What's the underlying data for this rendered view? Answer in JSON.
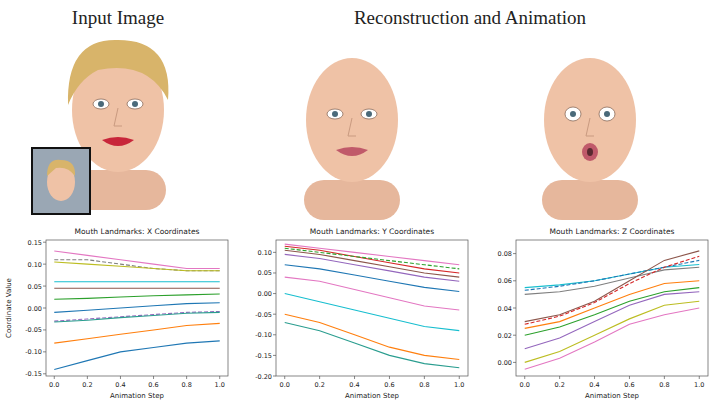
{
  "headings": {
    "left": "Input Image",
    "right": "Reconstruction and Animation"
  },
  "chart_data": [
    {
      "type": "line",
      "title": "Mouth Landmarks: X Coordinates",
      "x_label": "Animation Step",
      "y_label": "Coordinate Value",
      "x": [
        0.0,
        0.2,
        0.4,
        0.6,
        0.8,
        1.0
      ],
      "xlim": [
        -0.05,
        1.05
      ],
      "xticks": [
        {
          "value": 0,
          "label": "0.0"
        },
        {
          "value": 0.2,
          "label": "0.2"
        },
        {
          "value": 0.4,
          "label": "0.4"
        },
        {
          "value": 0.6,
          "label": "0.6"
        },
        {
          "value": 0.8,
          "label": "0.8"
        },
        {
          "value": 1,
          "label": "1.0"
        }
      ],
      "ylim": [
        -0.155,
        0.155
      ],
      "yticks": [
        {
          "value": -0.15,
          "label": "-0.15"
        },
        {
          "value": -0.1,
          "label": "-0.10"
        },
        {
          "value": -0.05,
          "label": "-0.05"
        },
        {
          "value": 0,
          "label": "0.00"
        },
        {
          "value": 0.05,
          "label": "0.05"
        },
        {
          "value": 0.1,
          "label": "0.10"
        },
        {
          "value": 0.15,
          "label": "0.15"
        }
      ],
      "grid": false,
      "series": [
        {
          "color": "#e377c2",
          "line_style": "solid",
          "values": [
            0.13,
            0.12,
            0.11,
            0.1,
            0.09,
            0.09
          ]
        },
        {
          "color": "#7f7f7f",
          "line_style": "dashed",
          "values": [
            0.11,
            0.11,
            0.1,
            0.09,
            0.085,
            0.085
          ]
        },
        {
          "color": "#bcbd22",
          "line_style": "solid",
          "values": [
            0.105,
            0.1,
            0.095,
            0.09,
            0.085,
            0.085
          ]
        },
        {
          "color": "#17becf",
          "line_style": "solid",
          "values": [
            0.06,
            0.06,
            0.06,
            0.06,
            0.06,
            0.06
          ]
        },
        {
          "color": "#8c564b",
          "line_style": "solid",
          "values": [
            0.045,
            0.045,
            0.045,
            0.045,
            0.045,
            0.045
          ]
        },
        {
          "color": "#2ca02c",
          "line_style": "solid",
          "values": [
            0.02,
            0.022,
            0.025,
            0.028,
            0.03,
            0.032
          ]
        },
        {
          "color": "#1f77b4",
          "line_style": "solid",
          "values": [
            -0.01,
            -0.005,
            0.0,
            0.005,
            0.01,
            0.012
          ]
        },
        {
          "color": "#9467bd",
          "line_style": "dashed",
          "values": [
            -0.03,
            -0.025,
            -0.02,
            -0.015,
            -0.01,
            -0.008
          ]
        },
        {
          "color": "#2a9d8f",
          "line_style": "solid",
          "values": [
            -0.032,
            -0.028,
            -0.022,
            -0.017,
            -0.012,
            -0.01
          ]
        },
        {
          "color": "#ff7f0e",
          "line_style": "solid",
          "values": [
            -0.08,
            -0.07,
            -0.06,
            -0.05,
            -0.04,
            -0.035
          ]
        },
        {
          "color": "#1f77b4",
          "line_style": "solid",
          "values": [
            -0.14,
            -0.12,
            -0.1,
            -0.09,
            -0.08,
            -0.075
          ]
        }
      ]
    },
    {
      "type": "line",
      "title": "Mouth Landmarks: Y Coordinates",
      "x_label": "Animation Step",
      "x": [
        0.0,
        0.2,
        0.4,
        0.6,
        0.8,
        1.0
      ],
      "xlim": [
        -0.05,
        1.05
      ],
      "xticks": [
        {
          "value": 0,
          "label": "0.0"
        },
        {
          "value": 0.2,
          "label": "0.2"
        },
        {
          "value": 0.4,
          "label": "0.4"
        },
        {
          "value": 0.6,
          "label": "0.6"
        },
        {
          "value": 0.8,
          "label": "0.8"
        },
        {
          "value": 1,
          "label": "1.0"
        }
      ],
      "ylim": [
        -0.2,
        0.13
      ],
      "yticks": [
        {
          "value": -0.2,
          "label": "-0.20"
        },
        {
          "value": -0.15,
          "label": "-0.15"
        },
        {
          "value": -0.1,
          "label": "-0.10"
        },
        {
          "value": -0.05,
          "label": "-0.05"
        },
        {
          "value": 0,
          "label": "0.00"
        },
        {
          "value": 0.05,
          "label": "0.05"
        },
        {
          "value": 0.1,
          "label": "0.10"
        }
      ],
      "grid": false,
      "series": [
        {
          "color": "#e377c2",
          "line_style": "solid",
          "values": [
            0.12,
            0.11,
            0.1,
            0.09,
            0.08,
            0.07
          ]
        },
        {
          "color": "#d62728",
          "line_style": "solid",
          "values": [
            0.115,
            0.105,
            0.09,
            0.075,
            0.06,
            0.05
          ]
        },
        {
          "color": "#2ca02c",
          "line_style": "dashed",
          "values": [
            0.11,
            0.1,
            0.09,
            0.08,
            0.07,
            0.06
          ]
        },
        {
          "color": "#8c564b",
          "line_style": "solid",
          "values": [
            0.105,
            0.095,
            0.08,
            0.065,
            0.05,
            0.04
          ]
        },
        {
          "color": "#9467bd",
          "line_style": "solid",
          "values": [
            0.095,
            0.085,
            0.07,
            0.055,
            0.04,
            0.03
          ]
        },
        {
          "color": "#1f77b4",
          "line_style": "solid",
          "values": [
            0.07,
            0.06,
            0.045,
            0.03,
            0.015,
            0.005
          ]
        },
        {
          "color": "#e377c2",
          "line_style": "solid",
          "values": [
            0.04,
            0.03,
            0.01,
            -0.01,
            -0.03,
            -0.04
          ]
        },
        {
          "color": "#17becf",
          "line_style": "solid",
          "values": [
            0.0,
            -0.02,
            -0.04,
            -0.06,
            -0.08,
            -0.09
          ]
        },
        {
          "color": "#ff7f0e",
          "line_style": "solid",
          "values": [
            -0.05,
            -0.07,
            -0.1,
            -0.13,
            -0.15,
            -0.16
          ]
        },
        {
          "color": "#2a9d8f",
          "line_style": "solid",
          "values": [
            -0.07,
            -0.09,
            -0.12,
            -0.15,
            -0.17,
            -0.18
          ]
        }
      ]
    },
    {
      "type": "line",
      "title": "Mouth Landmarks: Z Coordinates",
      "x_label": "Animation Step",
      "x": [
        0.0,
        0.2,
        0.4,
        0.6,
        0.8,
        1.0
      ],
      "xlim": [
        -0.05,
        1.05
      ],
      "xticks": [
        {
          "value": 0,
          "label": "0.0"
        },
        {
          "value": 0.2,
          "label": "0.2"
        },
        {
          "value": 0.4,
          "label": "0.4"
        },
        {
          "value": 0.6,
          "label": "0.6"
        },
        {
          "value": 0.8,
          "label": "0.8"
        },
        {
          "value": 1,
          "label": "1.0"
        }
      ],
      "ylim": [
        -0.01,
        0.09
      ],
      "yticks": [
        {
          "value": 0,
          "label": "0.00"
        },
        {
          "value": 0.02,
          "label": "0.02"
        },
        {
          "value": 0.04,
          "label": "0.04"
        },
        {
          "value": 0.06,
          "label": "0.06"
        },
        {
          "value": 0.08,
          "label": "0.08"
        }
      ],
      "grid": false,
      "series": [
        {
          "color": "#17becf",
          "line_style": "solid",
          "values": [
            0.055,
            0.057,
            0.06,
            0.065,
            0.07,
            0.072
          ]
        },
        {
          "color": "#1f77b4",
          "line_style": "dashed",
          "values": [
            0.053,
            0.056,
            0.06,
            0.065,
            0.07,
            0.075
          ]
        },
        {
          "color": "#7f7f7f",
          "line_style": "solid",
          "values": [
            0.05,
            0.052,
            0.056,
            0.062,
            0.068,
            0.07
          ]
        },
        {
          "color": "#8c564b",
          "line_style": "solid",
          "values": [
            0.03,
            0.035,
            0.045,
            0.06,
            0.075,
            0.082
          ]
        },
        {
          "color": "#d62728",
          "line_style": "dashed",
          "values": [
            0.028,
            0.034,
            0.044,
            0.058,
            0.07,
            0.078
          ]
        },
        {
          "color": "#ff7f0e",
          "line_style": "solid",
          "values": [
            0.025,
            0.03,
            0.04,
            0.05,
            0.058,
            0.06
          ]
        },
        {
          "color": "#2ca02c",
          "line_style": "solid",
          "values": [
            0.02,
            0.026,
            0.035,
            0.045,
            0.052,
            0.055
          ]
        },
        {
          "color": "#9467bd",
          "line_style": "solid",
          "values": [
            0.01,
            0.018,
            0.03,
            0.042,
            0.05,
            0.052
          ]
        },
        {
          "color": "#bcbd22",
          "line_style": "solid",
          "values": [
            0.0,
            0.008,
            0.02,
            0.032,
            0.042,
            0.045
          ]
        },
        {
          "color": "#e377c2",
          "line_style": "solid",
          "values": [
            -0.005,
            0.003,
            0.015,
            0.028,
            0.035,
            0.04
          ]
        }
      ]
    }
  ]
}
